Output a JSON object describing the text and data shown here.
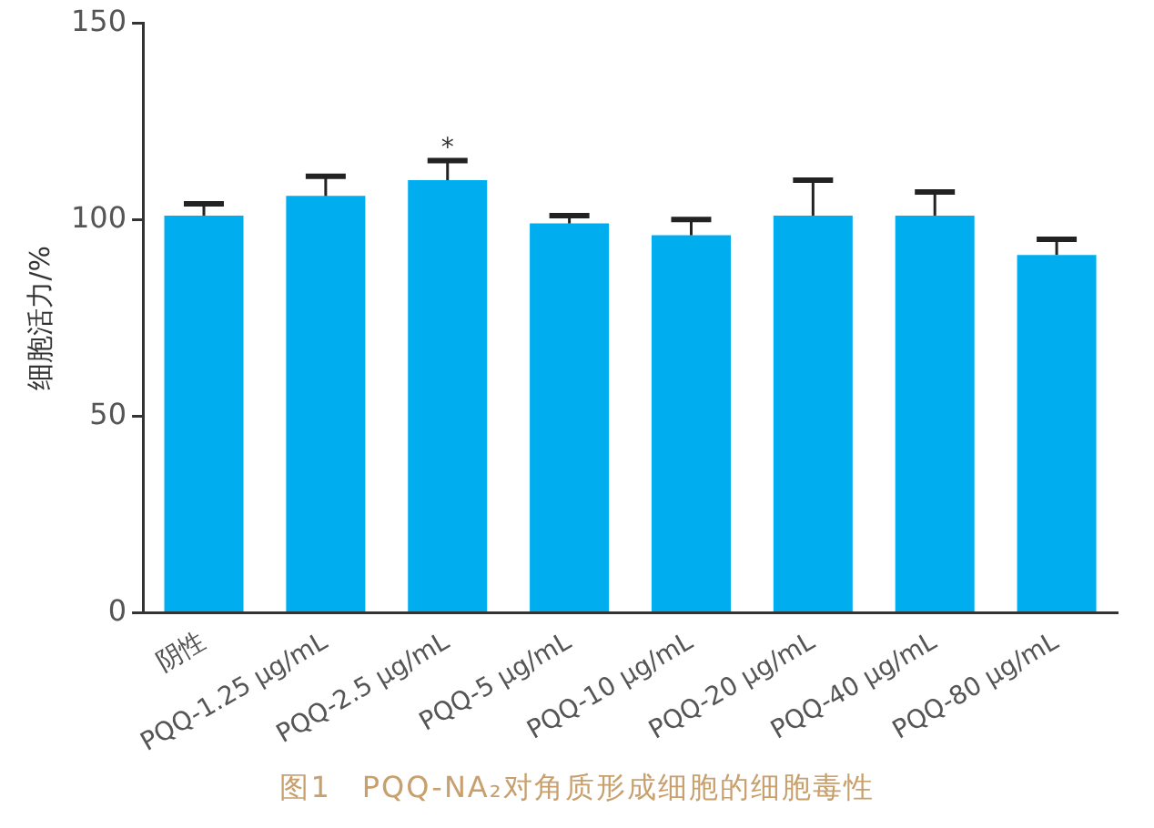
{
  "chart_data": {
    "type": "bar",
    "title": "图1　PQQ-NA₂对角质形成细胞的细胞毒性",
    "ylabel": "细胞活力/%",
    "categories": [
      "阴性",
      "PQQ-1.25 μg/mL",
      "PQQ-2.5 μg/mL",
      "PQQ-5 μg/mL",
      "PQQ-10 μg/mL",
      "PQQ-20 μg/mL",
      "PQQ-40 μg/mL",
      "PQQ-80 μg/mL"
    ],
    "values": [
      101,
      106,
      110,
      99,
      96,
      101,
      101,
      91
    ],
    "errors": [
      [
        101,
        104
      ],
      [
        106,
        111
      ],
      [
        110,
        115
      ],
      [
        99,
        101
      ],
      [
        96,
        100
      ],
      [
        101,
        110
      ],
      [
        101,
        107
      ],
      [
        91,
        95
      ]
    ],
    "color": "#00aeef",
    "ylim": [
      0,
      150
    ],
    "yticks": [
      0,
      50,
      100,
      150
    ],
    "grid": false,
    "legend": false,
    "annotations": [
      {
        "text": "*",
        "x": "PQQ-2.5 μg/mL",
        "y": 118
      }
    ]
  }
}
